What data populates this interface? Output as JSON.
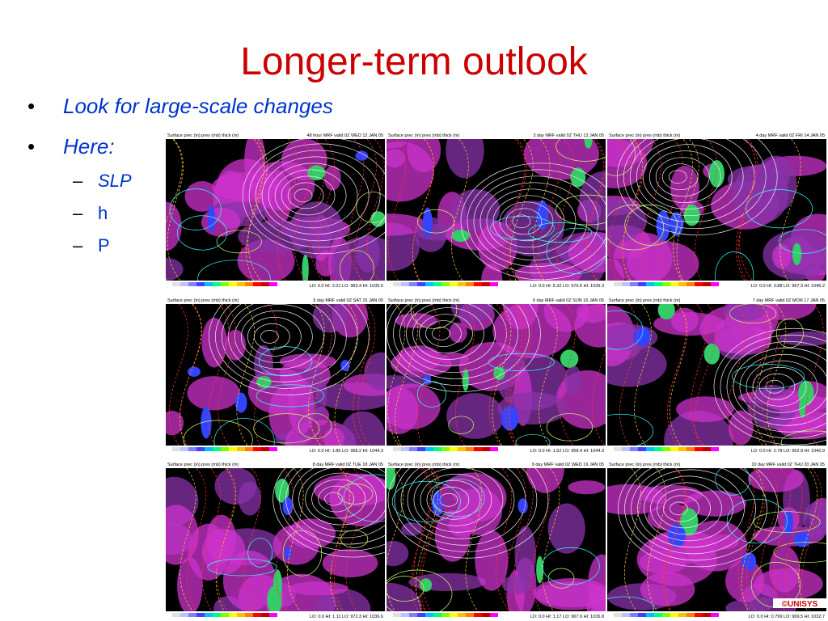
{
  "title": "Longer-term outlook",
  "bullets": [
    "Look for large-scale changes",
    "Here:"
  ],
  "sub_bullets": [
    "SLP",
    "h",
    "P"
  ],
  "panels": [
    {
      "header_left": "Surface prec (in) pres (mb) thick (m)",
      "header_right": "48 hour MRF valid 0Z WED 12 JAN 05",
      "footer": "LO: 0.0 HI: 2.01 LO: 983.4 HI: 1035.6"
    },
    {
      "header_left": "Surface prec (in) pres (mb) thick (m)",
      "header_right": "3 day MRF valid 0Z THU 13 JAN 05",
      "footer": "LO: 0.0 HI: 5.32 LO: 976.6 HI: 1039.3"
    },
    {
      "header_left": "Surface prec (in) pres (mb) thick (m)",
      "header_right": "4 day MRF valid 0Z FRI 14 JAN 05",
      "footer": "LO: 0.0 HI: 3.88 LO: 967.3 HI: 1046.2"
    },
    {
      "header_left": "Surface prec (in) pres (mb) thick (m)",
      "header_right": "5 day MRF valid 0Z SAT 15 JAN 05",
      "footer": "LO: 0.0 HI: 1.86 LO: 968.2 HI: 1044.3"
    },
    {
      "header_left": "Surface prec (in) pres (mb) thick (m)",
      "header_right": "6 day MRF valid 0Z SUN 16 JAN 05",
      "footer": "LO: 0.0 HI: 1.62 LO: 958.4 HI: 1044.3"
    },
    {
      "header_left": "Surface prec (in) pres (mb) thick (m)",
      "header_right": "7 day MRF valid 0Z MON 17 JAN 05",
      "footer": "LO: 0.0 HI: 2.78 LO: 962.9 HI: 1040.9"
    },
    {
      "header_left": "Surface prec (in) pres (mb) thick (m)",
      "header_right": "8 day MRF valid 0Z TUE 18 JAN 05",
      "footer": "LO: 0.0 HI: 1.11 LO: 972.3 HI: 1036.6"
    },
    {
      "header_left": "Surface prec (in) pres (mb) thick (m)",
      "header_right": "9 day MRF valid 0Z WED 19 JAN 05",
      "footer": "LO: 0.0 HI: 1.17 LO: 967.9 HI: 1036.8"
    },
    {
      "header_left": "Surface prec (in) pres (mb) thick (m)",
      "header_right": "10 day MRF valid 0Z THU 20 JAN 05",
      "footer": "LO: 0.0 HI: 0.799 LO: 969.5 HI: 1032.7"
    }
  ],
  "logo": "©UNISYS"
}
